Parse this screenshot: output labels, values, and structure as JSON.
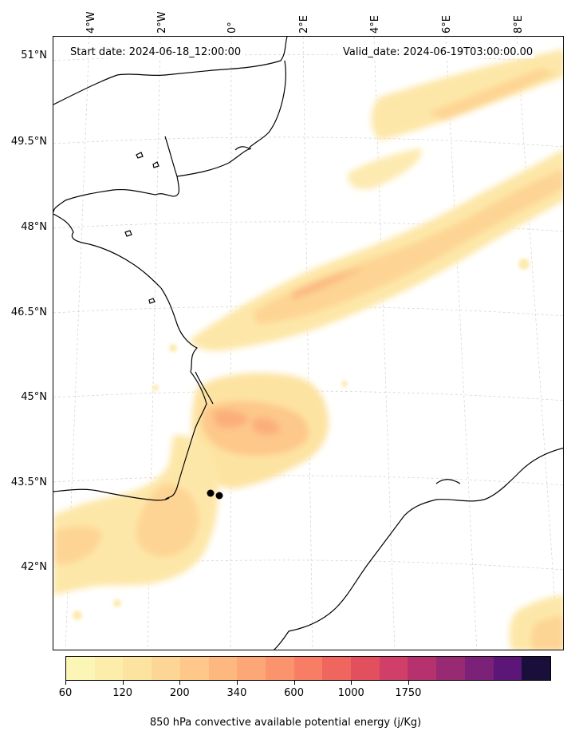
{
  "header": {
    "start_date": "Start date: 2024-06-18_12:00:00",
    "valid_date": "Valid_date: 2024-06-19T03:00:00.00"
  },
  "axes": {
    "longitude_labels": [
      "4°W",
      "2°W",
      "0°",
      "2°E",
      "4°E",
      "6°E",
      "8°E"
    ],
    "latitude_labels": [
      "51°N",
      "49.5°N",
      "48°N",
      "46.5°N",
      "45°N",
      "43.5°N",
      "42°N"
    ]
  },
  "colorbar": {
    "title": "850 hPa convective available potential energy (j/Kg)",
    "tick_labels": [
      "60",
      "120",
      "200",
      "340",
      "600",
      "1000",
      "1750"
    ],
    "colors": [
      "#fcf6b6",
      "#fcedaa",
      "#fce3a0",
      "#fdd695",
      "#fdc88a",
      "#fdb880",
      "#fea776",
      "#fb946c",
      "#f77e64",
      "#ef665f",
      "#e2505e",
      "#cf3f67",
      "#b5326f",
      "#982a74",
      "#7b2278",
      "#5c1678",
      "#1a0f3a"
    ]
  },
  "map": {
    "features": [
      "coastline",
      "graticule",
      "cape-shading"
    ],
    "markers": [
      {
        "name": "location-marker-1"
      },
      {
        "name": "location-marker-2"
      }
    ]
  }
}
